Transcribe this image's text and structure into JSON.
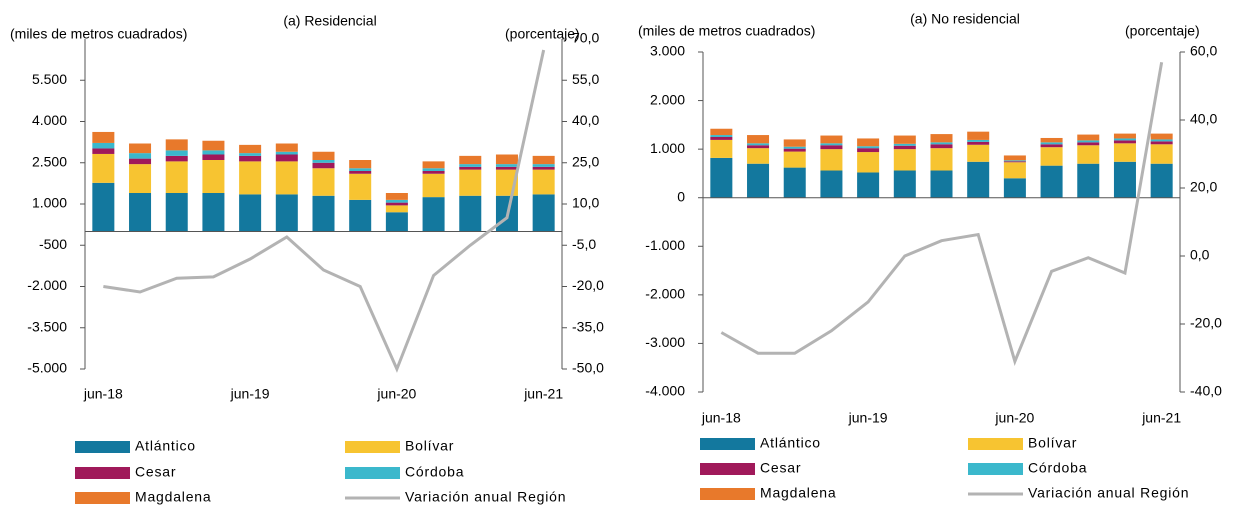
{
  "chart_data": [
    {
      "type": "bar",
      "stacked": true,
      "title": "(a) Residencial",
      "y_label": "(miles de metros cuadrados)",
      "y2_label": "(porcentaje)",
      "categories": [
        "jun-18",
        null,
        null,
        null,
        "jun-19",
        null,
        null,
        null,
        "jun-20",
        null,
        null,
        null,
        "jun-21"
      ],
      "ylim": [
        -5000,
        7000
      ],
      "yticks": [
        {
          "value": -5000,
          "label": "-5.000"
        },
        {
          "value": -3500,
          "label": "-3.500"
        },
        {
          "value": -2000,
          "label": "-2.000"
        },
        {
          "value": -500,
          "label": "-500"
        },
        {
          "value": 1000,
          "label": "1.000"
        },
        {
          "value": 2500,
          "label": "2.500"
        },
        {
          "value": 4000,
          "label": "4.000"
        },
        {
          "value": 5500,
          "label": "5.500"
        }
      ],
      "y2lim": [
        -50,
        70
      ],
      "y2ticks": [
        {
          "value": -50,
          "label": "-50,0"
        },
        {
          "value": -35,
          "label": "-35,0"
        },
        {
          "value": -20,
          "label": "-20,0"
        },
        {
          "value": -5,
          "label": "-5,0"
        },
        {
          "value": 10,
          "label": "10,0"
        },
        {
          "value": 25,
          "label": "25,0"
        },
        {
          "value": 40,
          "label": "40,0"
        },
        {
          "value": 55,
          "label": "55,0"
        },
        {
          "value": 70,
          "label": "70,0"
        }
      ],
      "series": [
        {
          "name": "Atlántico",
          "color": "#13789e",
          "values": [
            1770,
            1400,
            1400,
            1400,
            1350,
            1350,
            1300,
            1150,
            700,
            1250,
            1300,
            1300,
            1350
          ]
        },
        {
          "name": "Bolívar",
          "color": "#f7c431",
          "values": [
            1050,
            1050,
            1150,
            1200,
            1200,
            1200,
            1000,
            950,
            250,
            850,
            950,
            950,
            900
          ]
        },
        {
          "name": "Cesar",
          "color": "#a0195a",
          "values": [
            200,
            200,
            200,
            200,
            200,
            250,
            200,
            100,
            100,
            100,
            100,
            100,
            100
          ]
        },
        {
          "name": "Córdoba",
          "color": "#3bb8cc",
          "values": [
            200,
            200,
            200,
            150,
            100,
            100,
            100,
            100,
            100,
            100,
            100,
            100,
            100
          ]
        },
        {
          "name": "Magdalena",
          "color": "#e8792b",
          "values": [
            400,
            350,
            400,
            350,
            300,
            300,
            300,
            300,
            250,
            250,
            300,
            350,
            300
          ]
        },
        {
          "name": "Variación anual Región",
          "color": "#b3b3b3",
          "type": "line",
          "axis": "y2",
          "values": [
            -20,
            -22,
            -17,
            -16.5,
            -10,
            -2,
            -14,
            -20,
            -50,
            -16,
            -5,
            5,
            66
          ]
        }
      ]
    },
    {
      "type": "bar",
      "stacked": true,
      "title": "(a) No residencial",
      "y_label": "(miles de metros cuadrados)",
      "y2_label": "(porcentaje)",
      "categories": [
        "jun-18",
        null,
        null,
        null,
        "jun-19",
        null,
        null,
        null,
        "jun-20",
        null,
        null,
        null,
        "jun-21"
      ],
      "ylim": [
        -4000,
        3000
      ],
      "yticks": [
        {
          "value": -4000,
          "label": "-4.000"
        },
        {
          "value": -3000,
          "label": "-3.000"
        },
        {
          "value": -2000,
          "label": "-2.000"
        },
        {
          "value": -1000,
          "label": "-1.000"
        },
        0,
        {
          "value": 1000,
          "label": "1.000"
        },
        {
          "value": 2000,
          "label": "2.000"
        },
        {
          "value": 3000,
          "label": "3.000"
        }
      ],
      "y2lim": [
        -40,
        60
      ],
      "y2ticks": [
        {
          "value": -40,
          "label": "-40,0"
        },
        {
          "value": -20,
          "label": "-20,0"
        },
        {
          "value": 0,
          "label": "0,0"
        },
        {
          "value": 20,
          "label": "20,0"
        },
        {
          "value": 40,
          "label": "40,0"
        },
        {
          "value": 60,
          "label": "60,0"
        }
      ],
      "series": [
        {
          "name": "Atlántico",
          "color": "#13789e",
          "values": [
            820,
            700,
            620,
            560,
            520,
            560,
            560,
            740,
            400,
            660,
            700,
            740,
            700
          ]
        },
        {
          "name": "Bolívar",
          "color": "#f7c431",
          "values": [
            370,
            320,
            330,
            440,
            420,
            440,
            460,
            350,
            330,
            380,
            380,
            380,
            400
          ]
        },
        {
          "name": "Cesar",
          "color": "#a0195a",
          "values": [
            60,
            60,
            60,
            80,
            80,
            70,
            80,
            60,
            20,
            60,
            60,
            60,
            60
          ]
        },
        {
          "name": "Córdoba",
          "color": "#3bb8cc",
          "values": [
            40,
            40,
            40,
            40,
            40,
            40,
            40,
            40,
            20,
            40,
            40,
            40,
            40
          ]
        },
        {
          "name": "Magdalena",
          "color": "#e8792b",
          "values": [
            130,
            170,
            150,
            160,
            160,
            170,
            170,
            170,
            100,
            90,
            120,
            100,
            120
          ]
        },
        {
          "name": "Variación anual Región",
          "color": "#b3b3b3",
          "type": "line",
          "axis": "y2",
          "values": [
            -22.5,
            -28.6,
            -28.6,
            -22,
            -13.5,
            0,
            4.5,
            6.3,
            -31,
            -4.5,
            -0.5,
            -5,
            57
          ]
        }
      ]
    }
  ]
}
